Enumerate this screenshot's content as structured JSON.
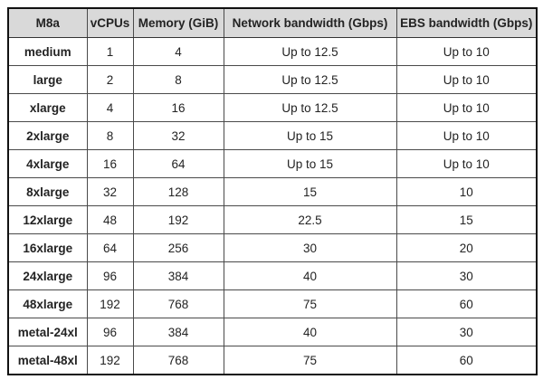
{
  "table": {
    "columns": [
      "M8a",
      "vCPUs",
      "Memory (GiB)",
      "Network bandwidth (Gbps)",
      "EBS bandwidth (Gbps)"
    ],
    "rows": [
      [
        "medium",
        "1",
        "4",
        "Up to 12.5",
        "Up to 10"
      ],
      [
        "large",
        "2",
        "8",
        "Up to 12.5",
        "Up to 10"
      ],
      [
        "xlarge",
        "4",
        "16",
        "Up to 12.5",
        "Up to 10"
      ],
      [
        "2xlarge",
        "8",
        "32",
        "Up to 15",
        "Up to 10"
      ],
      [
        "4xlarge",
        "16",
        "64",
        "Up to 15",
        "Up to 10"
      ],
      [
        "8xlarge",
        "32",
        "128",
        "15",
        "10"
      ],
      [
        "12xlarge",
        "48",
        "192",
        "22.5",
        "15"
      ],
      [
        "16xlarge",
        "64",
        "256",
        "30",
        "20"
      ],
      [
        "24xlarge",
        "96",
        "384",
        "40",
        "30"
      ],
      [
        "48xlarge",
        "192",
        "768",
        "75",
        "60"
      ],
      [
        "metal-24xl",
        "96",
        "384",
        "40",
        "30"
      ],
      [
        "metal-48xl",
        "192",
        "768",
        "75",
        "60"
      ]
    ],
    "colors": {
      "header_background": "#d9d9d9",
      "outer_border": "#111111",
      "inner_border": "#4a4a4a",
      "text": "#232323"
    }
  }
}
